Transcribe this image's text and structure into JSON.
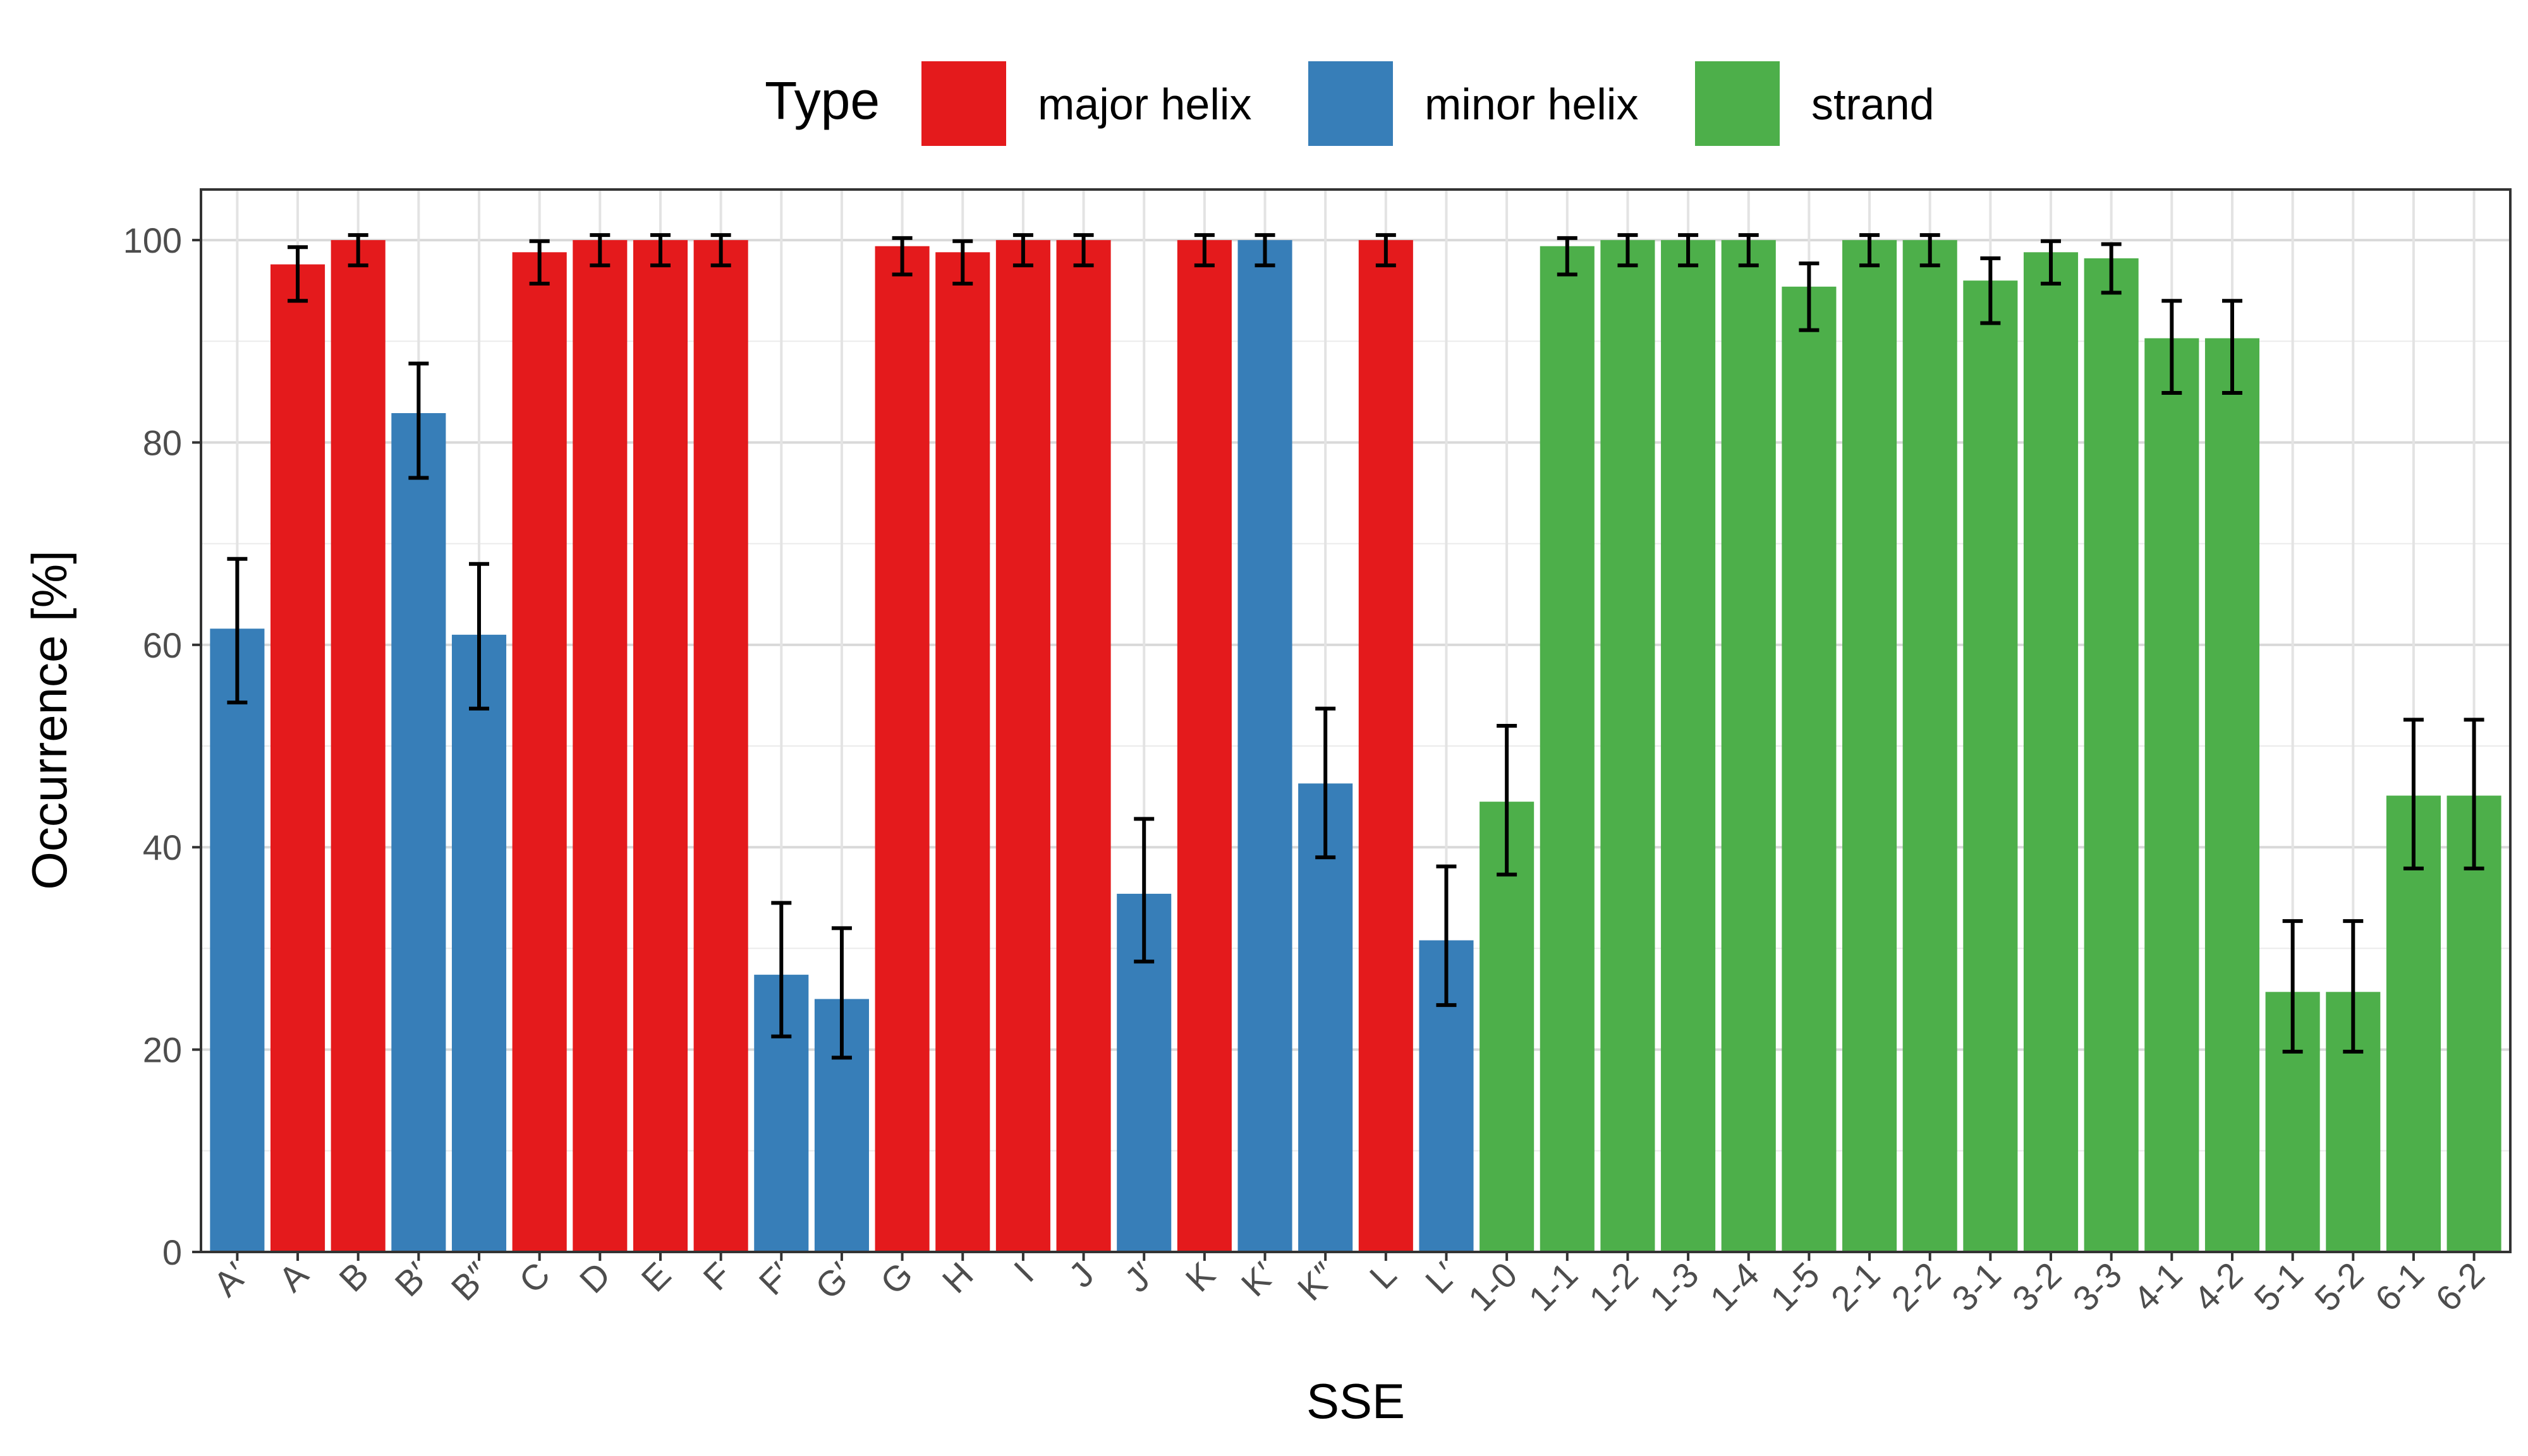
{
  "chart_data": {
    "type": "bar",
    "xlabel": "SSE",
    "ylabel": "Occurrence [%]",
    "ylim": [
      0,
      105
    ],
    "yticks": [
      0,
      20,
      40,
      60,
      80,
      100
    ],
    "grid": true,
    "legend": {
      "title": "Type",
      "position": "top",
      "entries": [
        {
          "key": "major",
          "label": "major helix",
          "color": "#E41A1C"
        },
        {
          "key": "minor",
          "label": "minor helix",
          "color": "#377EB8"
        },
        {
          "key": "strand",
          "label": "strand",
          "color": "#4DAF4A"
        }
      ]
    },
    "bars": [
      {
        "category": "A′",
        "type": "minor",
        "value": 61.6,
        "err_low": 54.3,
        "err_high": 68.5
      },
      {
        "category": "A",
        "type": "major",
        "value": 97.6,
        "err_low": 94.0,
        "err_high": 99.3
      },
      {
        "category": "B",
        "type": "major",
        "value": 100,
        "err_low": 97.5,
        "err_high": 100.5
      },
      {
        "category": "B′",
        "type": "minor",
        "value": 82.9,
        "err_low": 76.5,
        "err_high": 87.8
      },
      {
        "category": "B″",
        "type": "minor",
        "value": 61.0,
        "err_low": 53.7,
        "err_high": 68.0
      },
      {
        "category": "C",
        "type": "major",
        "value": 98.8,
        "err_low": 95.7,
        "err_high": 99.9
      },
      {
        "category": "D",
        "type": "major",
        "value": 100,
        "err_low": 97.5,
        "err_high": 100.5
      },
      {
        "category": "E",
        "type": "major",
        "value": 100,
        "err_low": 97.5,
        "err_high": 100.5
      },
      {
        "category": "F",
        "type": "major",
        "value": 100,
        "err_low": 97.5,
        "err_high": 100.5
      },
      {
        "category": "F′",
        "type": "minor",
        "value": 27.4,
        "err_low": 21.3,
        "err_high": 34.5
      },
      {
        "category": "G′",
        "type": "minor",
        "value": 25.0,
        "err_low": 19.2,
        "err_high": 32.0
      },
      {
        "category": "G",
        "type": "major",
        "value": 99.4,
        "err_low": 96.6,
        "err_high": 100.2
      },
      {
        "category": "H",
        "type": "major",
        "value": 98.8,
        "err_low": 95.7,
        "err_high": 99.9
      },
      {
        "category": "I",
        "type": "major",
        "value": 100,
        "err_low": 97.5,
        "err_high": 100.5
      },
      {
        "category": "J",
        "type": "major",
        "value": 100,
        "err_low": 97.5,
        "err_high": 100.5
      },
      {
        "category": "J′",
        "type": "minor",
        "value": 35.4,
        "err_low": 28.7,
        "err_high": 42.8
      },
      {
        "category": "K",
        "type": "major",
        "value": 100,
        "err_low": 97.5,
        "err_high": 100.5
      },
      {
        "category": "K′",
        "type": "minor",
        "value": 100,
        "err_low": 97.5,
        "err_high": 100.5
      },
      {
        "category": "K″",
        "type": "minor",
        "value": 46.3,
        "err_low": 39.0,
        "err_high": 53.7
      },
      {
        "category": "L",
        "type": "major",
        "value": 100,
        "err_low": 97.5,
        "err_high": 100.5
      },
      {
        "category": "L′",
        "type": "minor",
        "value": 30.8,
        "err_low": 24.4,
        "err_high": 38.1
      },
      {
        "category": "1-0",
        "type": "strand",
        "value": 44.5,
        "err_low": 37.3,
        "err_high": 52.0
      },
      {
        "category": "1-1",
        "type": "strand",
        "value": 99.4,
        "err_low": 96.6,
        "err_high": 100.2
      },
      {
        "category": "1-2",
        "type": "strand",
        "value": 100,
        "err_low": 97.5,
        "err_high": 100.5
      },
      {
        "category": "1-3",
        "type": "strand",
        "value": 100,
        "err_low": 97.5,
        "err_high": 100.5
      },
      {
        "category": "1-4",
        "type": "strand",
        "value": 100,
        "err_low": 97.5,
        "err_high": 100.5
      },
      {
        "category": "1-5",
        "type": "strand",
        "value": 95.4,
        "err_low": 91.1,
        "err_high": 97.7
      },
      {
        "category": "2-1",
        "type": "strand",
        "value": 100,
        "err_low": 97.5,
        "err_high": 100.5
      },
      {
        "category": "2-2",
        "type": "strand",
        "value": 100,
        "err_low": 97.5,
        "err_high": 100.5
      },
      {
        "category": "3-1",
        "type": "strand",
        "value": 96.0,
        "err_low": 91.8,
        "err_high": 98.2
      },
      {
        "category": "3-2",
        "type": "strand",
        "value": 98.8,
        "err_low": 95.7,
        "err_high": 99.9
      },
      {
        "category": "3-3",
        "type": "strand",
        "value": 98.2,
        "err_low": 94.8,
        "err_high": 99.6
      },
      {
        "category": "4-1",
        "type": "strand",
        "value": 90.3,
        "err_low": 84.9,
        "err_high": 94.0
      },
      {
        "category": "4-2",
        "type": "strand",
        "value": 90.3,
        "err_low": 84.9,
        "err_high": 94.0
      },
      {
        "category": "5-1",
        "type": "strand",
        "value": 25.7,
        "err_low": 19.8,
        "err_high": 32.7
      },
      {
        "category": "5-2",
        "type": "strand",
        "value": 25.7,
        "err_low": 19.8,
        "err_high": 32.7
      },
      {
        "category": "6-1",
        "type": "strand",
        "value": 45.1,
        "err_low": 37.9,
        "err_high": 52.6
      },
      {
        "category": "6-2",
        "type": "strand",
        "value": 45.1,
        "err_low": 37.9,
        "err_high": 52.6
      }
    ]
  }
}
